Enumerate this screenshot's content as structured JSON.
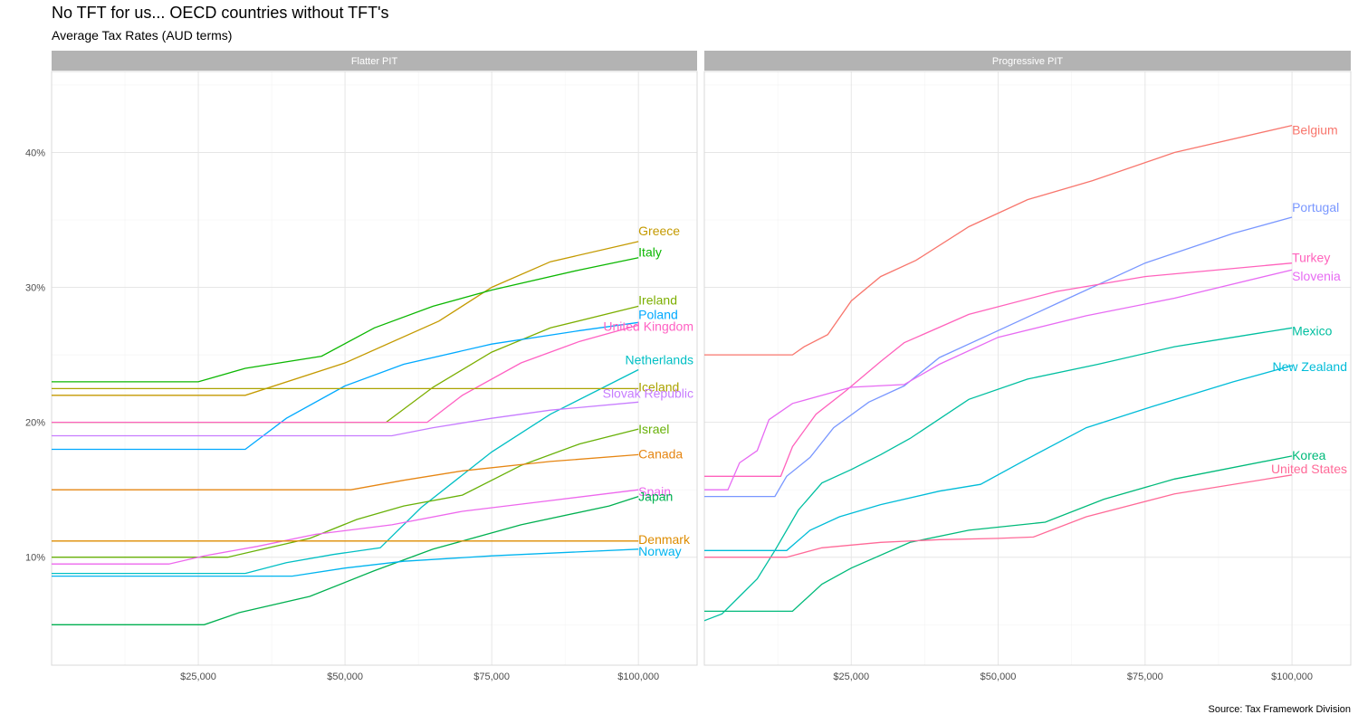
{
  "chart_data": {
    "type": "line",
    "title": "No TFT for us... OECD countries without TFT's",
    "subtitle": "Average Tax Rates (AUD terms)",
    "caption": "Source: Tax Framework Division",
    "xlabel": "",
    "ylabel": "",
    "xlim": [
      0,
      110000
    ],
    "ylim": [
      2,
      46
    ],
    "x_ticks": [
      25000,
      50000,
      75000,
      100000
    ],
    "x_tick_labels": [
      "$25,000",
      "$50,000",
      "$75,000",
      "$100,000"
    ],
    "y_ticks": [
      10,
      20,
      30,
      40
    ],
    "y_tick_labels": [
      "10%",
      "20%",
      "30%",
      "40%"
    ],
    "grid": true,
    "legend": "none (direct labels)",
    "panels": [
      {
        "name": "Flatter PIT",
        "series": [
          {
            "name": "Greece",
            "color": "#C49A00",
            "points": [
              [
                0,
                22
              ],
              [
                33000,
                22
              ],
              [
                50000,
                24.4
              ],
              [
                66000,
                27.5
              ],
              [
                75000,
                30
              ],
              [
                85000,
                31.9
              ],
              [
                100000,
                33.4
              ]
            ]
          },
          {
            "name": "Italy",
            "color": "#0CB702",
            "points": [
              [
                0,
                23
              ],
              [
                25000,
                23
              ],
              [
                33000,
                24
              ],
              [
                46000,
                24.9
              ],
              [
                55000,
                27
              ],
              [
                65000,
                28.6
              ],
              [
                75000,
                29.8
              ],
              [
                90000,
                31.3
              ],
              [
                100000,
                32.2
              ]
            ]
          },
          {
            "name": "Ireland",
            "color": "#7CAE00",
            "points": [
              [
                0,
                20
              ],
              [
                57000,
                20
              ],
              [
                65000,
                22.6
              ],
              [
                75000,
                25.2
              ],
              [
                85000,
                27
              ],
              [
                100000,
                28.6
              ]
            ]
          },
          {
            "name": "Poland",
            "color": "#00A9FF",
            "points": [
              [
                0,
                18
              ],
              [
                33000,
                18
              ],
              [
                40000,
                20.3
              ],
              [
                50000,
                22.7
              ],
              [
                60000,
                24.3
              ],
              [
                75000,
                25.8
              ],
              [
                90000,
                26.8
              ],
              [
                100000,
                27.4
              ]
            ]
          },
          {
            "name": "United Kingdom",
            "color": "#FF61C3",
            "points": [
              [
                0,
                20
              ],
              [
                64000,
                20
              ],
              [
                70000,
                22
              ],
              [
                80000,
                24.4
              ],
              [
                90000,
                26
              ],
              [
                100000,
                27.2
              ]
            ]
          },
          {
            "name": "Netherlands",
            "color": "#00BFC4",
            "points": [
              [
                0,
                8.8
              ],
              [
                33000,
                8.8
              ],
              [
                40000,
                9.6
              ],
              [
                48000,
                10.2
              ],
              [
                56000,
                10.7
              ],
              [
                63000,
                13.7
              ],
              [
                75000,
                17.8
              ],
              [
                85000,
                20.6
              ],
              [
                100000,
                23.9
              ]
            ]
          },
          {
            "name": "Iceland",
            "color": "#ABA300",
            "points": [
              [
                0,
                22.5
              ],
              [
                100000,
                22.5
              ]
            ]
          },
          {
            "name": "Slovak Republic",
            "color": "#C77CFF",
            "points": [
              [
                0,
                19
              ],
              [
                58000,
                19
              ],
              [
                65000,
                19.6
              ],
              [
                75000,
                20.3
              ],
              [
                85000,
                20.9
              ],
              [
                100000,
                21.5
              ]
            ]
          },
          {
            "name": "Israel",
            "color": "#68B108",
            "points": [
              [
                0,
                10
              ],
              [
                30000,
                10
              ],
              [
                36000,
                10.6
              ],
              [
                44000,
                11.4
              ],
              [
                52000,
                12.8
              ],
              [
                60000,
                13.8
              ],
              [
                70000,
                14.6
              ],
              [
                80000,
                16.8
              ],
              [
                90000,
                18.4
              ],
              [
                100000,
                19.5
              ]
            ]
          },
          {
            "name": "Canada",
            "color": "#E68613",
            "points": [
              [
                0,
                15
              ],
              [
                51000,
                15
              ],
              [
                60000,
                15.7
              ],
              [
                70000,
                16.4
              ],
              [
                85000,
                17.1
              ],
              [
                100000,
                17.6
              ]
            ]
          },
          {
            "name": "Spain",
            "color": "#ED68ED",
            "points": [
              [
                0,
                9.5
              ],
              [
                20000,
                9.5
              ],
              [
                26000,
                10.1
              ],
              [
                35000,
                10.8
              ],
              [
                45000,
                11.7
              ],
              [
                58000,
                12.4
              ],
              [
                70000,
                13.4
              ],
              [
                85000,
                14.2
              ],
              [
                100000,
                15
              ]
            ]
          },
          {
            "name": "Japan",
            "color": "#00B050",
            "points": [
              [
                0,
                5
              ],
              [
                26000,
                5
              ],
              [
                32000,
                5.9
              ],
              [
                44000,
                7.1
              ],
              [
                55000,
                9
              ],
              [
                65000,
                10.6
              ],
              [
                80000,
                12.4
              ],
              [
                95000,
                13.8
              ],
              [
                100000,
                14.5
              ]
            ]
          },
          {
            "name": "Denmark",
            "color": "#DE8C00",
            "points": [
              [
                0,
                11.2
              ],
              [
                100000,
                11.2
              ]
            ]
          },
          {
            "name": "Norway",
            "color": "#00B4EF",
            "points": [
              [
                0,
                8.6
              ],
              [
                41000,
                8.6
              ],
              [
                50000,
                9.2
              ],
              [
                60000,
                9.7
              ],
              [
                75000,
                10.1
              ],
              [
                100000,
                10.6
              ]
            ]
          }
        ]
      },
      {
        "name": "Progressive PIT",
        "series": [
          {
            "name": "Belgium",
            "color": "#F8766D",
            "points": [
              [
                0,
                25
              ],
              [
                15000,
                25
              ],
              [
                17000,
                25.6
              ],
              [
                21000,
                26.5
              ],
              [
                25000,
                29
              ],
              [
                30000,
                30.8
              ],
              [
                36000,
                32
              ],
              [
                45000,
                34.5
              ],
              [
                55000,
                36.5
              ],
              [
                66000,
                37.9
              ],
              [
                80000,
                40
              ],
              [
                100000,
                42
              ]
            ]
          },
          {
            "name": "Portugal",
            "color": "#7997FF",
            "points": [
              [
                0,
                14.5
              ],
              [
                12000,
                14.5
              ],
              [
                14000,
                16
              ],
              [
                18000,
                17.4
              ],
              [
                22000,
                19.6
              ],
              [
                28000,
                21.5
              ],
              [
                34000,
                22.7
              ],
              [
                40000,
                24.8
              ],
              [
                50000,
                26.8
              ],
              [
                60000,
                28.8
              ],
              [
                75000,
                31.8
              ],
              [
                90000,
                34
              ],
              [
                100000,
                35.2
              ]
            ]
          },
          {
            "name": "Turkey",
            "color": "#FF62BC",
            "points": [
              [
                0,
                16
              ],
              [
                13000,
                16
              ],
              [
                15000,
                18.2
              ],
              [
                19000,
                20.6
              ],
              [
                24000,
                22.3
              ],
              [
                30000,
                24.5
              ],
              [
                34000,
                25.9
              ],
              [
                45000,
                28
              ],
              [
                60000,
                29.7
              ],
              [
                75000,
                30.8
              ],
              [
                100000,
                31.8
              ]
            ]
          },
          {
            "name": "Slovenia",
            "color": "#E76BF3",
            "points": [
              [
                0,
                15
              ],
              [
                4000,
                15
              ],
              [
                6000,
                17
              ],
              [
                9000,
                17.9
              ],
              [
                11000,
                20.2
              ],
              [
                15000,
                21.4
              ],
              [
                25000,
                22.6
              ],
              [
                34000,
                22.8
              ],
              [
                40000,
                24.3
              ],
              [
                50000,
                26.3
              ],
              [
                65000,
                27.9
              ],
              [
                80000,
                29.2
              ],
              [
                100000,
                31.3
              ]
            ]
          },
          {
            "name": "Mexico",
            "color": "#00BFA0",
            "points": [
              [
                -5000,
                2
              ],
              [
                -3000,
                4.8
              ],
              [
                0,
                5.3
              ],
              [
                3000,
                5.8
              ],
              [
                6000,
                7.1
              ],
              [
                9000,
                8.4
              ],
              [
                12000,
                10.5
              ],
              [
                16000,
                13.5
              ],
              [
                20000,
                15.5
              ],
              [
                25000,
                16.5
              ],
              [
                30000,
                17.6
              ],
              [
                35000,
                18.8
              ],
              [
                45000,
                21.7
              ],
              [
                55000,
                23.2
              ],
              [
                67000,
                24.3
              ],
              [
                80000,
                25.6
              ],
              [
                90000,
                26.3
              ],
              [
                100000,
                27
              ]
            ]
          },
          {
            "name": "New Zealand",
            "color": "#00BCD8",
            "points": [
              [
                0,
                10.5
              ],
              [
                14000,
                10.5
              ],
              [
                18000,
                12
              ],
              [
                23000,
                13
              ],
              [
                30000,
                13.9
              ],
              [
                40000,
                14.9
              ],
              [
                47000,
                15.4
              ],
              [
                55000,
                17.3
              ],
              [
                65000,
                19.6
              ],
              [
                75000,
                21
              ],
              [
                90000,
                23
              ],
              [
                100000,
                24.2
              ]
            ]
          },
          {
            "name": "Korea",
            "color": "#00BA7A",
            "points": [
              [
                0,
                6
              ],
              [
                15000,
                6
              ],
              [
                20000,
                8
              ],
              [
                25000,
                9.2
              ],
              [
                35000,
                11.1
              ],
              [
                45000,
                12
              ],
              [
                58000,
                12.6
              ],
              [
                68000,
                14.3
              ],
              [
                80000,
                15.8
              ],
              [
                100000,
                17.5
              ]
            ]
          },
          {
            "name": "United States",
            "color": "#FF6A98",
            "points": [
              [
                0,
                10
              ],
              [
                14000,
                10
              ],
              [
                20000,
                10.7
              ],
              [
                30000,
                11.1
              ],
              [
                40000,
                11.3
              ],
              [
                50000,
                11.4
              ],
              [
                56000,
                11.5
              ],
              [
                65000,
                13
              ],
              [
                80000,
                14.7
              ],
              [
                100000,
                16.1
              ]
            ]
          }
        ]
      }
    ]
  }
}
